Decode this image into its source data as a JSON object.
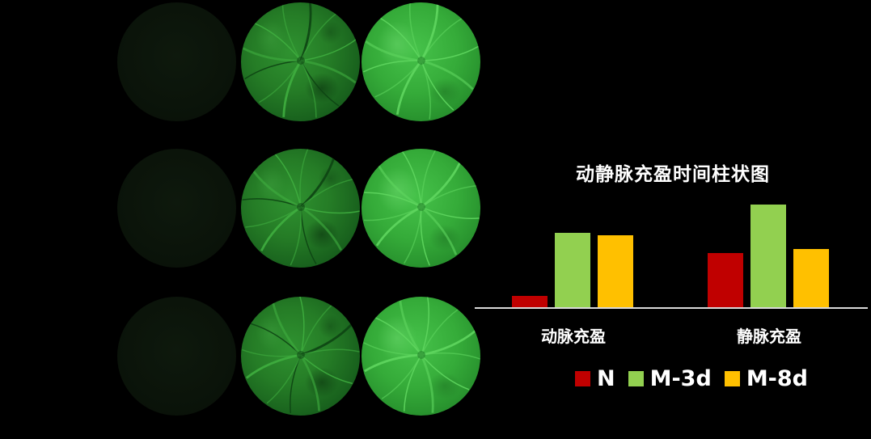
{
  "figure": {
    "background_color": "#000000",
    "angiography_panels": {
      "rows": 3,
      "cols": 3,
      "row_frames": [
        [
          "dark",
          "mid",
          "bright"
        ],
        [
          "dark",
          "mid",
          "bright"
        ],
        [
          "dark",
          "mid",
          "bright"
        ]
      ],
      "frame_descriptions": {
        "dark": "pre-injection near-black fundus frame with faint dark-green tint",
        "mid": "fluorescein-filled green fundus frame with radiating vessels, mottled",
        "bright": "bright fluorescein green fundus frame with light radiating vessels"
      }
    }
  },
  "chart_data": {
    "type": "bar",
    "title": "动静脉充盈时间柱状图",
    "categories": [
      "动脉充盈",
      "静脉充盈"
    ],
    "series": [
      {
        "name": "N",
        "color": "#C00000",
        "values": [
          14,
          67
        ]
      },
      {
        "name": "M-3d",
        "color": "#92D050",
        "values": [
          92,
          127
        ]
      },
      {
        "name": "M-8d",
        "color": "#FFC000",
        "values": [
          89,
          72
        ]
      }
    ],
    "xlabel": "",
    "ylabel": "",
    "ylim": [
      0,
      140
    ],
    "value_units": "relative height (no y-axis scale shown)",
    "y_axis_visible": false,
    "gridlines": false,
    "axis_line_color": "#D9D9D9",
    "text_color": "#FFFFFF",
    "legend_position": "bottom"
  }
}
